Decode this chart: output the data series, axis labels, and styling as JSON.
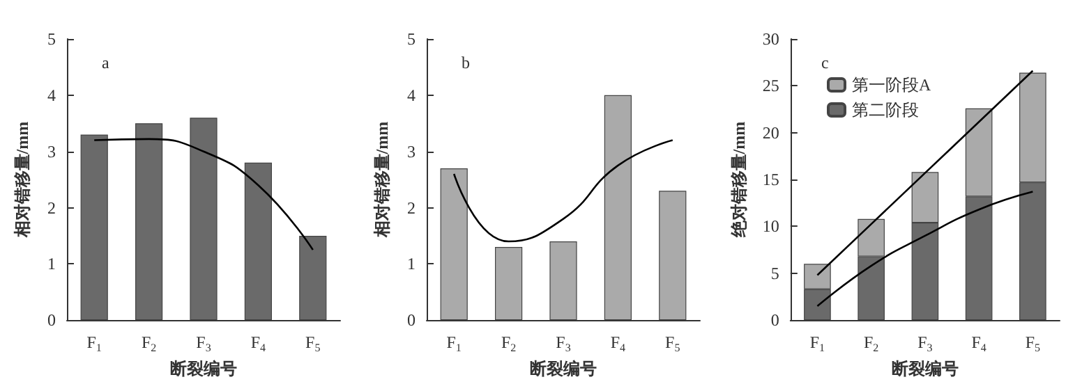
{
  "chart_data": [
    {
      "type": "bar",
      "title": "a",
      "xlabel": "断裂编号",
      "ylabel": "相对错移量/mm",
      "categories": [
        "F$_{1}$",
        "F$_{2}$",
        "F$_{3}$",
        "F$_{4}$",
        "F$_{5}$"
      ],
      "ylim": [
        0,
        5
      ],
      "yticks": [
        0,
        1,
        2,
        3,
        4,
        5
      ],
      "grid": false,
      "legend": false,
      "series": [
        {
          "color": "#6a6a6a",
          "values": [
            3.3,
            3.5,
            3.6,
            2.8,
            1.5
          ]
        },
        {
          "type": "line",
          "color": "#000000",
          "marker": "none",
          "x": [
            "F$_{1}$",
            "F$_{2}$",
            "F$_{3}$",
            "F$_{4}$",
            "F$_{5}$"
          ],
          "values": [
            3.2,
            3.22,
            3.0,
            2.4,
            1.25
          ]
        }
      ]
    },
    {
      "type": "bar",
      "title": "b",
      "xlabel": "断裂编号",
      "ylabel": "相对错移量/mm",
      "categories": [
        "F$_{1}$",
        "F$_{2}$",
        "F$_{3}$",
        "F$_{4}$",
        "F$_{5}$"
      ],
      "ylim": [
        0,
        5
      ],
      "yticks": [
        0,
        1,
        2,
        3,
        4,
        5
      ],
      "grid": false,
      "legend": false,
      "series": [
        {
          "color": "#aaaaaa",
          "values": [
            2.7,
            1.3,
            1.4,
            4.0,
            2.3
          ]
        },
        {
          "type": "line",
          "color": "#000000",
          "marker": "none",
          "x": [
            "F$_{1}$",
            "F$_{2}$",
            "F$_{3}$",
            "F$_{4}$",
            "F$_{5}$"
          ],
          "values": [
            2.6,
            1.4,
            1.8,
            2.75,
            3.2
          ]
        }
      ]
    },
    {
      "type": "bar",
      "title": "c",
      "xlabel": "断裂编号",
      "ylabel": "绝对错移量/mm",
      "categories": [
        "F$_{1}$",
        "F$_{2}$",
        "F$_{3}$",
        "F$_{4}$",
        "F$_{5}$"
      ],
      "ylim": [
        0,
        30
      ],
      "yticks": [
        0,
        5,
        10,
        15,
        20,
        25,
        30
      ],
      "grid": false,
      "stacked": true,
      "legend": "top left",
      "series": [
        {
          "name": "第二阶段",
          "color": "#6a6a6a",
          "values": [
            3.3,
            6.8,
            10.4,
            13.2,
            14.7
          ]
        },
        {
          "name": "第一阶段A",
          "color": "#aaaaaa",
          "values": [
            2.7,
            4.0,
            5.4,
            9.4,
            11.7
          ]
        },
        {
          "type": "line",
          "color": "#000000",
          "marker": "none",
          "x": [
            "F$_{1}$",
            "F$_{2}$",
            "F$_{3}$",
            "F$_{4}$",
            "F$_{5}$"
          ],
          "values": [
            4.8,
            10.25,
            15.7,
            21.15,
            26.6
          ]
        },
        {
          "type": "line",
          "color": "#000000",
          "marker": "none",
          "x": [
            "F$_{1}$",
            "F$_{2}$",
            "F$_{3}$",
            "F$_{4}$",
            "F$_{5}$"
          ],
          "values": [
            1.5,
            5.8,
            9.0,
            11.8,
            13.7
          ]
        }
      ]
    }
  ]
}
